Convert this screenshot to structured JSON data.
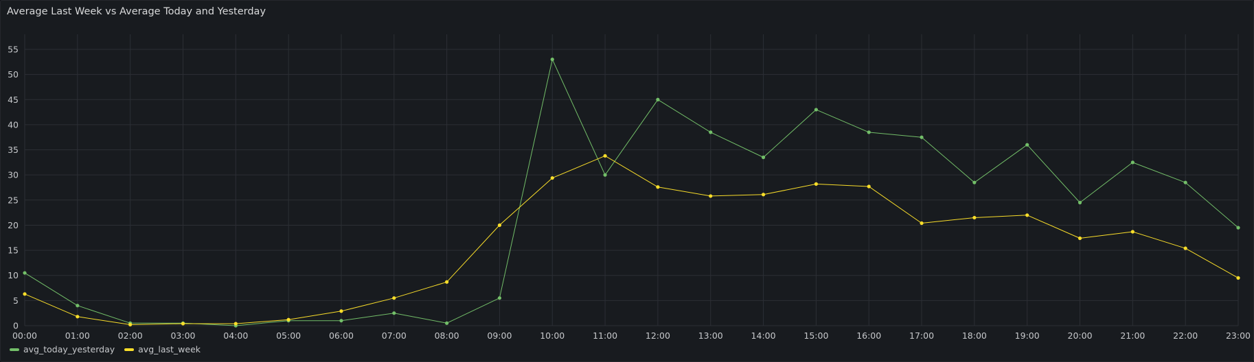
{
  "panel": {
    "title": "Average Last Week vs Average Today and Yesterday"
  },
  "legend": {
    "items": [
      {
        "label": "avg_today_yesterday",
        "color": "#73bf69"
      },
      {
        "label": "avg_last_week",
        "color": "#fade2a"
      }
    ]
  },
  "chart_data": {
    "type": "line",
    "title": "Average Last Week vs Average Today and Yesterday",
    "xlabel": "",
    "ylabel": "",
    "x": [
      "00:00",
      "01:00",
      "02:00",
      "03:00",
      "04:00",
      "05:00",
      "06:00",
      "07:00",
      "08:00",
      "09:00",
      "10:00",
      "11:00",
      "12:00",
      "13:00",
      "14:00",
      "15:00",
      "16:00",
      "17:00",
      "18:00",
      "19:00",
      "20:00",
      "21:00",
      "22:00",
      "23:00"
    ],
    "ylim": [
      0,
      58
    ],
    "yticks": [
      0,
      5,
      10,
      15,
      20,
      25,
      30,
      35,
      40,
      45,
      50,
      55
    ],
    "grid": true,
    "legend_position": "bottom-left",
    "series": [
      {
        "name": "avg_today_yesterday",
        "color": "#73bf69",
        "values": [
          10.5,
          4,
          0.5,
          0.5,
          0,
          1,
          1,
          2.5,
          0.5,
          5.5,
          53,
          30,
          45,
          38.5,
          33.5,
          43,
          38.5,
          37.5,
          28.5,
          36,
          24.5,
          32.5,
          28.5,
          19.5
        ]
      },
      {
        "name": "avg_last_week",
        "color": "#fade2a",
        "values": [
          6.3,
          1.8,
          0.2,
          0.4,
          0.4,
          1.2,
          2.9,
          5.5,
          8.7,
          20,
          29.4,
          33.8,
          27.6,
          25.8,
          26.1,
          28.2,
          27.7,
          20.4,
          21.5,
          22,
          17.4,
          18.7,
          15.4,
          9.5
        ]
      }
    ]
  }
}
